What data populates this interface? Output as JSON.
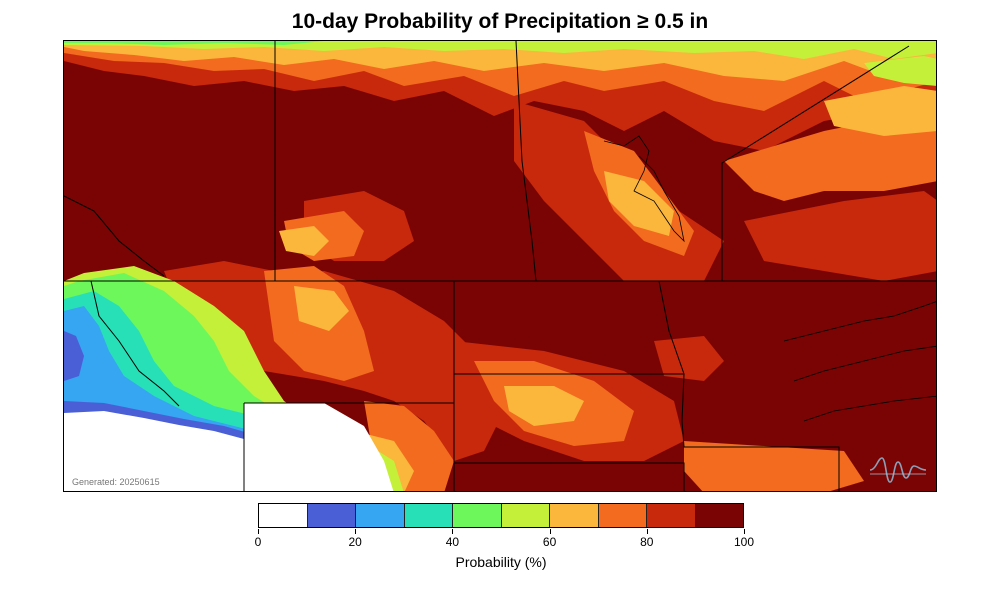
{
  "title": "10-day Probability of Precipitation ≥ 0.5 in",
  "generated_label": "Generated: 20250615",
  "legend": {
    "title": "Probability (%)",
    "tick_labels": [
      "0",
      "20",
      "40",
      "60",
      "80",
      "100"
    ],
    "bins": [
      {
        "range": [
          0,
          10
        ],
        "color": "#ffffff"
      },
      {
        "range": [
          10,
          20
        ],
        "color": "#4a5fd6"
      },
      {
        "range": [
          20,
          30
        ],
        "color": "#36a5f2"
      },
      {
        "range": [
          30,
          40
        ],
        "color": "#28e0b8"
      },
      {
        "range": [
          40,
          50
        ],
        "color": "#6ef75a"
      },
      {
        "range": [
          50,
          60
        ],
        "color": "#c4f03a"
      },
      {
        "range": [
          60,
          70
        ],
        "color": "#fbb63c"
      },
      {
        "range": [
          70,
          80
        ],
        "color": "#f26b1e"
      },
      {
        "range": [
          80,
          90
        ],
        "color": "#c8290c"
      },
      {
        "range": [
          90,
          100
        ],
        "color": "#7a0404"
      }
    ]
  },
  "logo_icon": "wave-glyph-logo-icon"
}
